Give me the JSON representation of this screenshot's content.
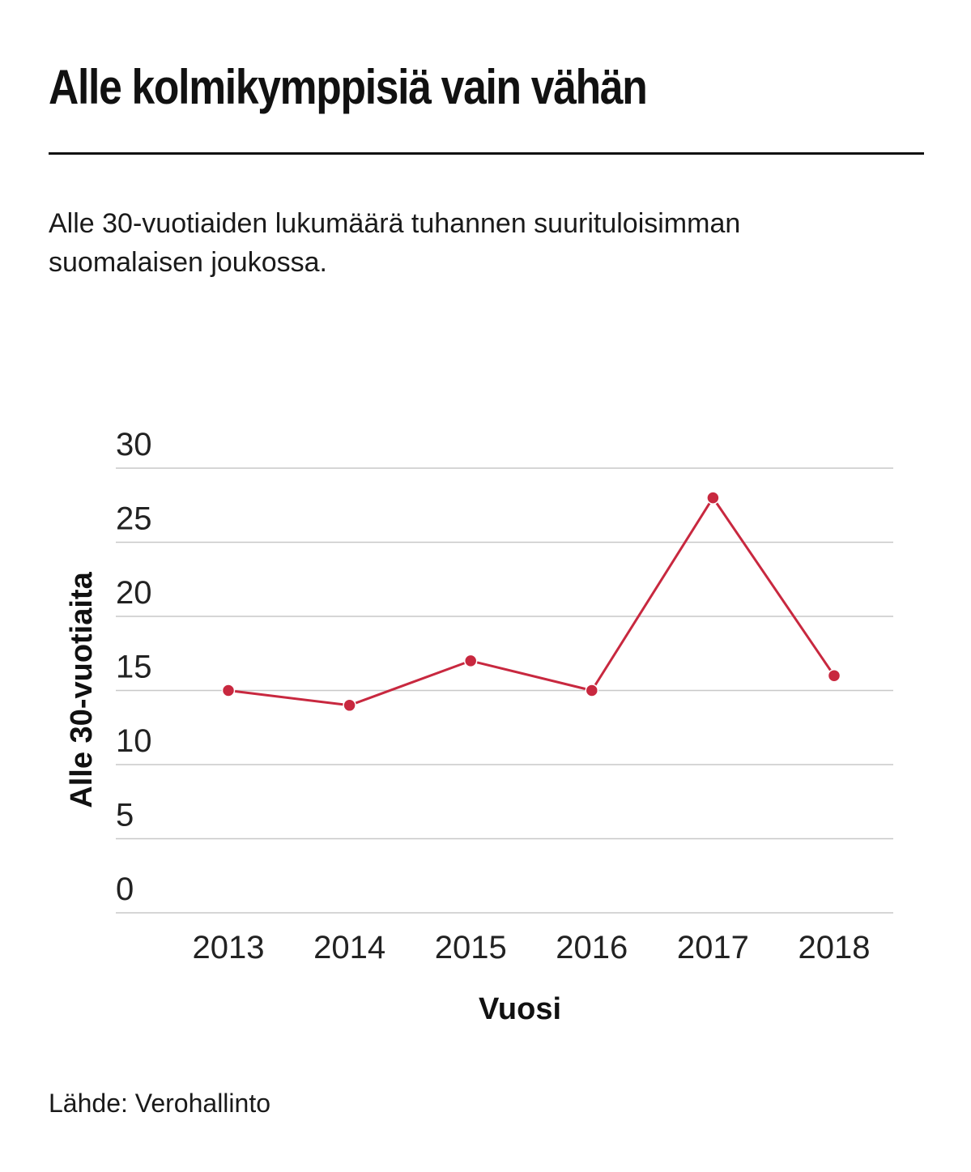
{
  "header": {
    "title": "Alle kolmikymppisiä vain vähän",
    "subtitle": "Alle 30-vuotiaiden lukumäärä tuhannen suurituloisimman suomalaisen joukossa."
  },
  "footer": {
    "source": "Lähde: Verohallinto"
  },
  "colors": {
    "line": "#c8283f",
    "grid": "#c8c8c8"
  },
  "chart_data": {
    "type": "line",
    "title": "Alle kolmikymppisiä vain vähän",
    "xlabel": "Vuosi",
    "ylabel": "Alle 30-vuotiaita",
    "x": [
      "2013",
      "2014",
      "2015",
      "2016",
      "2017",
      "2018"
    ],
    "series": [
      {
        "values": [
          15,
          14,
          17,
          15,
          28,
          16
        ]
      }
    ],
    "yticks": [
      0,
      5,
      10,
      15,
      20,
      25,
      30
    ],
    "ylim": [
      0,
      30
    ],
    "grid": true,
    "legend": "none"
  }
}
